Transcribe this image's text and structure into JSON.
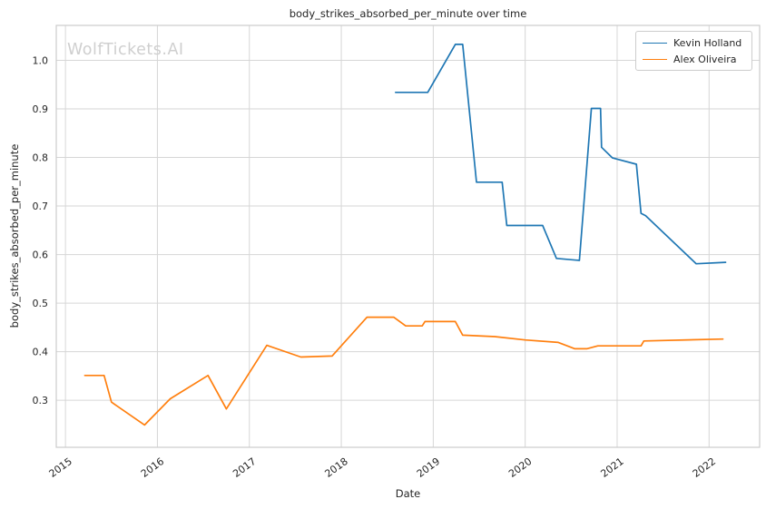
{
  "watermark": "WolfTickets.AI",
  "chart_data": {
    "type": "line",
    "title": "body_strikes_absorbed_per_minute over time",
    "xlabel": "Date",
    "ylabel": "body_strikes_absorbed_per_minute",
    "grid": true,
    "legend_position": "top-right",
    "xlim": [
      2014.9,
      2022.55
    ],
    "ylim": [
      0.203,
      1.072
    ],
    "x_ticks": [
      2015,
      2016,
      2017,
      2018,
      2019,
      2020,
      2021,
      2022
    ],
    "x_tick_labels": [
      "2015",
      "2016",
      "2017",
      "2018",
      "2019",
      "2020",
      "2021",
      "2022"
    ],
    "y_ticks": [
      0.3,
      0.4,
      0.5,
      0.6,
      0.7,
      0.8,
      0.9,
      1.0
    ],
    "y_tick_labels": [
      "0.3",
      "0.4",
      "0.5",
      "0.6",
      "0.7",
      "0.8",
      "0.9",
      "1.0"
    ],
    "colors": {
      "series_blue": "#1f77b4",
      "series_orange": "#ff7f0e",
      "grid": "#d6d6d6",
      "axes_edge": "#cccccc",
      "text": "#262626",
      "watermark": "#cfcfcf"
    },
    "series": [
      {
        "name": "Kevin Holland",
        "color": "#1f77b4",
        "points": [
          [
            2018.59,
            0.934
          ],
          [
            2018.94,
            0.934
          ],
          [
            2019.24,
            1.033
          ],
          [
            2019.32,
            1.033
          ],
          [
            2019.47,
            0.749
          ],
          [
            2019.75,
            0.749
          ],
          [
            2019.8,
            0.66
          ],
          [
            2020.19,
            0.66
          ],
          [
            2020.34,
            0.592
          ],
          [
            2020.59,
            0.588
          ],
          [
            2020.72,
            0.901
          ],
          [
            2020.82,
            0.901
          ],
          [
            2020.83,
            0.821
          ],
          [
            2020.95,
            0.799
          ],
          [
            2021.21,
            0.786
          ],
          [
            2021.26,
            0.685
          ],
          [
            2021.31,
            0.68
          ],
          [
            2021.86,
            0.581
          ],
          [
            2022.18,
            0.584
          ]
        ]
      },
      {
        "name": "Alex Oliveira",
        "color": "#ff7f0e",
        "points": [
          [
            2015.21,
            0.351
          ],
          [
            2015.42,
            0.351
          ],
          [
            2015.5,
            0.296
          ],
          [
            2015.86,
            0.249
          ],
          [
            2016.14,
            0.303
          ],
          [
            2016.55,
            0.351
          ],
          [
            2016.75,
            0.282
          ],
          [
            2017.19,
            0.413
          ],
          [
            2017.56,
            0.389
          ],
          [
            2017.9,
            0.391
          ],
          [
            2018.28,
            0.471
          ],
          [
            2018.57,
            0.471
          ],
          [
            2018.7,
            0.453
          ],
          [
            2018.88,
            0.453
          ],
          [
            2018.91,
            0.462
          ],
          [
            2019.24,
            0.462
          ],
          [
            2019.32,
            0.434
          ],
          [
            2019.67,
            0.431
          ],
          [
            2020.0,
            0.424
          ],
          [
            2020.36,
            0.419
          ],
          [
            2020.54,
            0.406
          ],
          [
            2020.67,
            0.406
          ],
          [
            2020.79,
            0.412
          ],
          [
            2021.26,
            0.412
          ],
          [
            2021.29,
            0.422
          ],
          [
            2022.15,
            0.426
          ]
        ]
      }
    ]
  }
}
